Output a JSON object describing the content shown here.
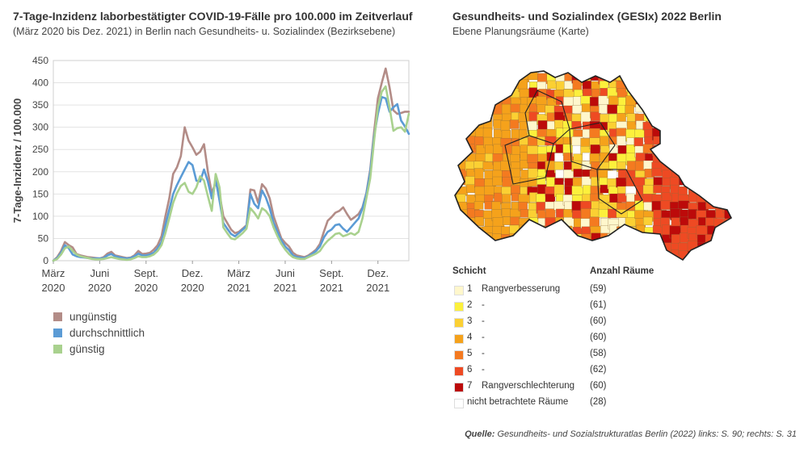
{
  "left": {
    "title": "7-Tage-Inzidenz laborbestätigter COVID-19-Fälle pro 100.000 im Zeitverlauf",
    "subtitle": "(März 2020 bis Dez. 2021) in Berlin nach Gesundheits- u. Sozialindex (Bezirksebene)"
  },
  "right": {
    "title": "Gesundheits- und Sozialindex (GESIx) 2022 Berlin",
    "subtitle": "Ebene Planungsräume (Karte)"
  },
  "chart_data": {
    "type": "line",
    "ylabel": "7-Tage-Inzidenz / 100.000",
    "ylim": [
      0,
      450
    ],
    "yticks": [
      "0",
      "50",
      "100",
      "150",
      "200",
      "250",
      "300",
      "350",
      "400",
      "450"
    ],
    "xlim": [
      0,
      88
    ],
    "xticks": [
      {
        "x": 0,
        "line1": "März",
        "line2": "2020"
      },
      {
        "x": 12,
        "line1": "Juni",
        "line2": "2020"
      },
      {
        "x": 24,
        "line1": "Sept.",
        "line2": "2020"
      },
      {
        "x": 36,
        "line1": "Dez.",
        "line2": "2020"
      },
      {
        "x": 48,
        "line1": "März",
        "line2": "2021"
      },
      {
        "x": 60,
        "line1": "Juni",
        "line2": "2021"
      },
      {
        "x": 72,
        "line1": "Sept.",
        "line2": "2021"
      },
      {
        "x": 84,
        "line1": "Dez.",
        "line2": "2021"
      }
    ],
    "grid": "horizontal",
    "legend": "bottom-left",
    "series": [
      {
        "name": "ungünstig",
        "color": "#b38c87",
        "values": [
          [
            0,
            0
          ],
          [
            1,
            8
          ],
          [
            2,
            22
          ],
          [
            3,
            42
          ],
          [
            4,
            35
          ],
          [
            5,
            30
          ],
          [
            6,
            15
          ],
          [
            7,
            12
          ],
          [
            8,
            10
          ],
          [
            9,
            8
          ],
          [
            10,
            7
          ],
          [
            11,
            6
          ],
          [
            12,
            5
          ],
          [
            13,
            8
          ],
          [
            14,
            16
          ],
          [
            15,
            20
          ],
          [
            16,
            12
          ],
          [
            17,
            10
          ],
          [
            18,
            8
          ],
          [
            19,
            6
          ],
          [
            20,
            7
          ],
          [
            21,
            12
          ],
          [
            22,
            22
          ],
          [
            23,
            15
          ],
          [
            24,
            16
          ],
          [
            25,
            18
          ],
          [
            26,
            25
          ],
          [
            27,
            35
          ],
          [
            28,
            55
          ],
          [
            29,
            100
          ],
          [
            30,
            140
          ],
          [
            31,
            195
          ],
          [
            32,
            210
          ],
          [
            33,
            235
          ],
          [
            34,
            300
          ],
          [
            35,
            270
          ],
          [
            36,
            255
          ],
          [
            37,
            238
          ],
          [
            38,
            245
          ],
          [
            39,
            262
          ],
          [
            40,
            200
          ],
          [
            41,
            152
          ],
          [
            42,
            175
          ],
          [
            43,
            150
          ],
          [
            44,
            100
          ],
          [
            45,
            85
          ],
          [
            46,
            70
          ],
          [
            47,
            62
          ],
          [
            48,
            65
          ],
          [
            49,
            72
          ],
          [
            50,
            80
          ],
          [
            51,
            160
          ],
          [
            52,
            158
          ],
          [
            53,
            130
          ],
          [
            54,
            172
          ],
          [
            55,
            162
          ],
          [
            56,
            140
          ],
          [
            57,
            100
          ],
          [
            58,
            75
          ],
          [
            59,
            50
          ],
          [
            60,
            40
          ],
          [
            61,
            32
          ],
          [
            62,
            18
          ],
          [
            63,
            12
          ],
          [
            64,
            10
          ],
          [
            65,
            8
          ],
          [
            66,
            12
          ],
          [
            67,
            18
          ],
          [
            68,
            25
          ],
          [
            69,
            38
          ],
          [
            70,
            65
          ],
          [
            71,
            90
          ],
          [
            72,
            98
          ],
          [
            73,
            108
          ],
          [
            74,
            112
          ],
          [
            75,
            120
          ],
          [
            76,
            105
          ],
          [
            77,
            92
          ],
          [
            78,
            98
          ],
          [
            79,
            105
          ],
          [
            80,
            120
          ],
          [
            81,
            152
          ],
          [
            82,
            205
          ],
          [
            83,
            290
          ],
          [
            84,
            365
          ],
          [
            85,
            400
          ],
          [
            86,
            432
          ],
          [
            87,
            390
          ],
          [
            88,
            338
          ],
          [
            89,
            330
          ],
          [
            90,
            332
          ],
          [
            91,
            335
          ],
          [
            92,
            335
          ]
        ]
      },
      {
        "name": "durchschnittlich",
        "color": "#5b9bd5",
        "values": [
          [
            0,
            0
          ],
          [
            1,
            6
          ],
          [
            2,
            18
          ],
          [
            3,
            35
          ],
          [
            4,
            28
          ],
          [
            5,
            14
          ],
          [
            6,
            10
          ],
          [
            7,
            8
          ],
          [
            8,
            7
          ],
          [
            9,
            6
          ],
          [
            10,
            5
          ],
          [
            11,
            5
          ],
          [
            12,
            5
          ],
          [
            13,
            6
          ],
          [
            14,
            12
          ],
          [
            15,
            15
          ],
          [
            16,
            10
          ],
          [
            17,
            8
          ],
          [
            18,
            6
          ],
          [
            19,
            5
          ],
          [
            20,
            6
          ],
          [
            21,
            10
          ],
          [
            22,
            16
          ],
          [
            23,
            12
          ],
          [
            24,
            12
          ],
          [
            25,
            14
          ],
          [
            26,
            18
          ],
          [
            27,
            28
          ],
          [
            28,
            42
          ],
          [
            29,
            80
          ],
          [
            30,
            115
          ],
          [
            31,
            150
          ],
          [
            32,
            170
          ],
          [
            33,
            188
          ],
          [
            34,
            205
          ],
          [
            35,
            222
          ],
          [
            36,
            215
          ],
          [
            37,
            180
          ],
          [
            38,
            178
          ],
          [
            39,
            205
          ],
          [
            40,
            178
          ],
          [
            41,
            140
          ],
          [
            42,
            182
          ],
          [
            43,
            135
          ],
          [
            44,
            85
          ],
          [
            45,
            72
          ],
          [
            46,
            60
          ],
          [
            47,
            55
          ],
          [
            48,
            62
          ],
          [
            49,
            70
          ],
          [
            50,
            78
          ],
          [
            51,
            150
          ],
          [
            52,
            128
          ],
          [
            53,
            118
          ],
          [
            54,
            158
          ],
          [
            55,
            142
          ],
          [
            56,
            118
          ],
          [
            57,
            85
          ],
          [
            58,
            65
          ],
          [
            59,
            45
          ],
          [
            60,
            32
          ],
          [
            61,
            24
          ],
          [
            62,
            12
          ],
          [
            63,
            8
          ],
          [
            64,
            7
          ],
          [
            65,
            6
          ],
          [
            66,
            10
          ],
          [
            67,
            15
          ],
          [
            68,
            22
          ],
          [
            69,
            32
          ],
          [
            70,
            52
          ],
          [
            71,
            65
          ],
          [
            72,
            70
          ],
          [
            73,
            80
          ],
          [
            74,
            82
          ],
          [
            75,
            72
          ],
          [
            76,
            65
          ],
          [
            77,
            75
          ],
          [
            78,
            85
          ],
          [
            79,
            95
          ],
          [
            80,
            118
          ],
          [
            81,
            150
          ],
          [
            82,
            200
          ],
          [
            83,
            280
          ],
          [
            84,
            330
          ],
          [
            85,
            368
          ],
          [
            86,
            365
          ],
          [
            87,
            335
          ],
          [
            88,
            345
          ],
          [
            89,
            352
          ],
          [
            90,
            315
          ],
          [
            91,
            302
          ],
          [
            92,
            285
          ]
        ]
      },
      {
        "name": "günstig",
        "color": "#a9d18e",
        "values": [
          [
            0,
            0
          ],
          [
            1,
            4
          ],
          [
            2,
            14
          ],
          [
            3,
            28
          ],
          [
            4,
            32
          ],
          [
            5,
            22
          ],
          [
            6,
            14
          ],
          [
            7,
            10
          ],
          [
            8,
            8
          ],
          [
            9,
            6
          ],
          [
            10,
            4
          ],
          [
            11,
            3
          ],
          [
            12,
            3
          ],
          [
            13,
            4
          ],
          [
            14,
            6
          ],
          [
            15,
            8
          ],
          [
            16,
            6
          ],
          [
            17,
            4
          ],
          [
            18,
            3
          ],
          [
            19,
            2
          ],
          [
            20,
            3
          ],
          [
            21,
            6
          ],
          [
            22,
            10
          ],
          [
            23,
            8
          ],
          [
            24,
            8
          ],
          [
            25,
            10
          ],
          [
            26,
            14
          ],
          [
            27,
            22
          ],
          [
            28,
            35
          ],
          [
            29,
            62
          ],
          [
            30,
            95
          ],
          [
            31,
            130
          ],
          [
            32,
            152
          ],
          [
            33,
            168
          ],
          [
            34,
            175
          ],
          [
            35,
            155
          ],
          [
            36,
            150
          ],
          [
            37,
            165
          ],
          [
            38,
            190
          ],
          [
            39,
            180
          ],
          [
            40,
            145
          ],
          [
            41,
            112
          ],
          [
            42,
            195
          ],
          [
            43,
            165
          ],
          [
            44,
            75
          ],
          [
            45,
            62
          ],
          [
            46,
            50
          ],
          [
            47,
            48
          ],
          [
            48,
            55
          ],
          [
            49,
            62
          ],
          [
            50,
            72
          ],
          [
            51,
            118
          ],
          [
            52,
            108
          ],
          [
            53,
            95
          ],
          [
            54,
            118
          ],
          [
            55,
            112
          ],
          [
            56,
            100
          ],
          [
            57,
            75
          ],
          [
            58,
            55
          ],
          [
            59,
            38
          ],
          [
            60,
            25
          ],
          [
            61,
            15
          ],
          [
            62,
            8
          ],
          [
            63,
            5
          ],
          [
            64,
            4
          ],
          [
            65,
            4
          ],
          [
            66,
            8
          ],
          [
            67,
            12
          ],
          [
            68,
            16
          ],
          [
            69,
            22
          ],
          [
            70,
            35
          ],
          [
            71,
            45
          ],
          [
            72,
            52
          ],
          [
            73,
            60
          ],
          [
            74,
            62
          ],
          [
            75,
            55
          ],
          [
            76,
            58
          ],
          [
            77,
            62
          ],
          [
            78,
            58
          ],
          [
            79,
            65
          ],
          [
            80,
            95
          ],
          [
            81,
            140
          ],
          [
            82,
            185
          ],
          [
            83,
            270
          ],
          [
            84,
            345
          ],
          [
            85,
            380
          ],
          [
            86,
            392
          ],
          [
            87,
            345
          ],
          [
            88,
            292
          ],
          [
            89,
            298
          ],
          [
            90,
            300
          ],
          [
            91,
            290
          ],
          [
            92,
            330
          ]
        ]
      }
    ]
  },
  "map_legend": {
    "header_left": "Schicht",
    "header_right": "Anzahl Räume",
    "rows": [
      {
        "num": "1",
        "label": "Rangverbesserung",
        "count": "(59)",
        "color": "#fff7cc"
      },
      {
        "num": "2",
        "label": "-",
        "count": "(61)",
        "color": "#fcf03c"
      },
      {
        "num": "3",
        "label": "-",
        "count": "(60)",
        "color": "#fbd033"
      },
      {
        "num": "4",
        "label": "-",
        "count": "(60)",
        "color": "#f5a21b"
      },
      {
        "num": "5",
        "label": "-",
        "count": "(58)",
        "color": "#f47a20"
      },
      {
        "num": "6",
        "label": "-",
        "count": "(62)",
        "color": "#ee4a23"
      },
      {
        "num": "7",
        "label": "Rangverschlechterung",
        "count": "(60)",
        "color": "#bc0a0a"
      }
    ],
    "extra": {
      "label": "nicht betrachtete Räume",
      "count": "(28)",
      "color": "#ffffff"
    }
  },
  "source": {
    "label": "Quelle:",
    "text": "Gesundheits- und Sozialstrukturatlas Berlin (2022) links: S. 90; rechts:  S. 31"
  }
}
